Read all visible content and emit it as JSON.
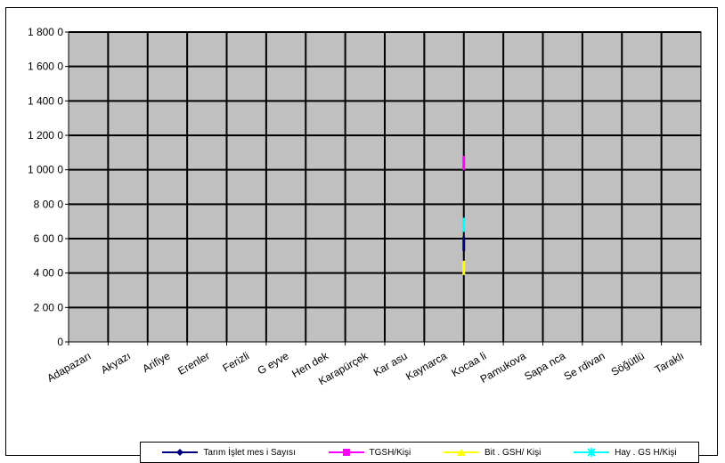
{
  "chart_data": {
    "type": "line",
    "title": "",
    "xlabel": "",
    "ylabel": "",
    "ylim": [
      0,
      18000
    ],
    "yticks": [
      "0",
      "2 00 0",
      "4 00 0",
      "6 00 0",
      "8 00 0",
      "1 000 0",
      "1 200 0",
      "1 400 0",
      "1 600 0",
      "1 800 0"
    ],
    "categories": [
      "Adapazarı",
      "Akyazı",
      "Arifiye",
      "Erenler",
      "Ferizli",
      "G eyve",
      "Hen dek",
      "Karapürçek",
      "Kar asu",
      "Kaynarca",
      "Kocaa li",
      "Pamukova",
      "Sapa nca",
      "Se rdivan",
      "Söğütlü",
      "Taraklı"
    ],
    "series": [
      {
        "name": "Tarım İşlet mes i Sayısı",
        "color": "#000080",
        "marker": "diamond",
        "values": [
          null,
          null,
          null,
          null,
          null,
          null,
          null,
          null,
          null,
          null,
          5700,
          null,
          null,
          null,
          null,
          null
        ]
      },
      {
        "name": "TGSH/Kişi",
        "color": "#ff00ff",
        "marker": "square",
        "values": [
          null,
          null,
          null,
          null,
          null,
          null,
          null,
          null,
          null,
          null,
          10400,
          null,
          null,
          null,
          null,
          null
        ]
      },
      {
        "name": "Bit . GSH/ Kişi",
        "color": "#ffff00",
        "marker": "triangle",
        "values": [
          null,
          null,
          null,
          null,
          null,
          null,
          null,
          null,
          null,
          null,
          4300,
          null,
          null,
          null,
          null,
          null
        ]
      },
      {
        "name": "Hay . GS H/Kişi",
        "color": "#00ffff",
        "marker": "star",
        "values": [
          null,
          null,
          null,
          null,
          null,
          null,
          null,
          null,
          null,
          null,
          6800,
          null,
          null,
          null,
          null,
          null
        ]
      }
    ],
    "grid": true,
    "legend_position": "bottom",
    "plot_background": "#c0c0c0"
  }
}
